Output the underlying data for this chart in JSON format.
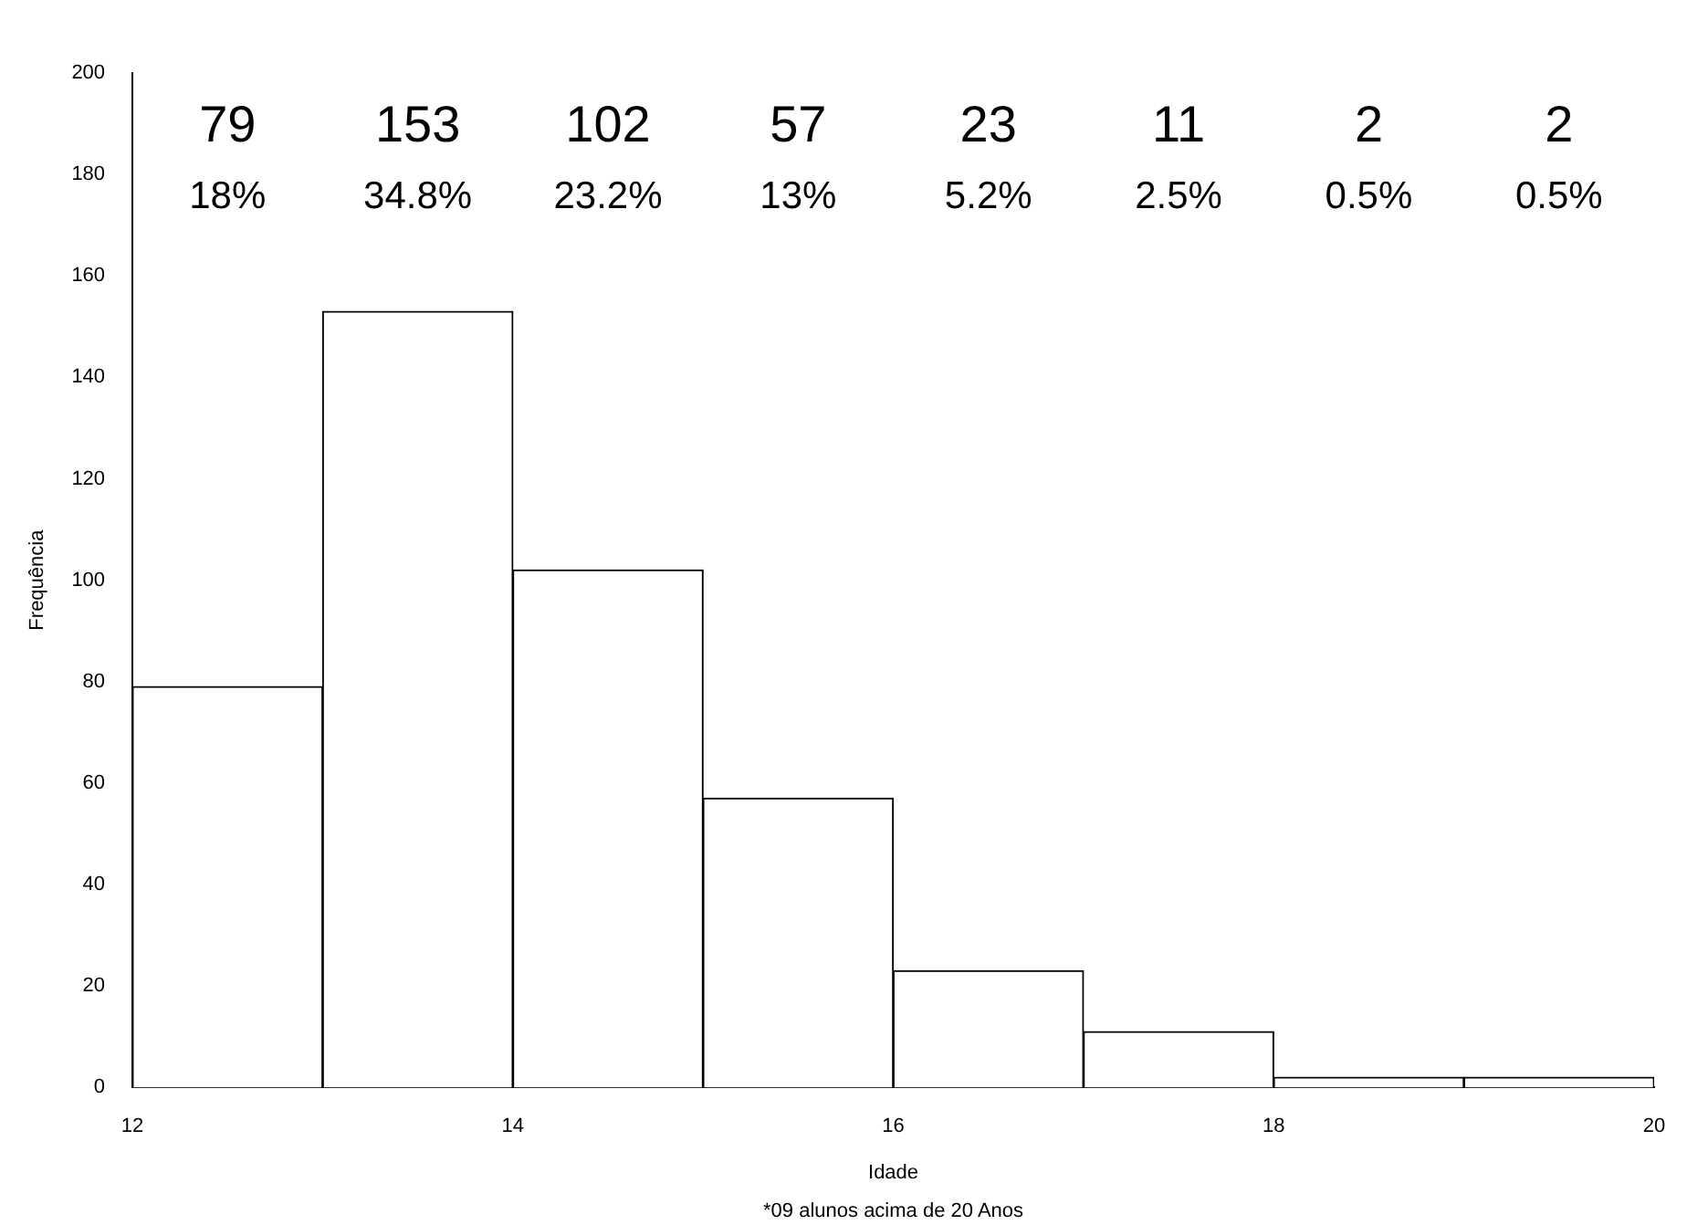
{
  "chart_data": {
    "type": "histogram",
    "xlabel": "Idade",
    "ylabel": "Frequência",
    "bins": [
      12,
      13,
      14,
      15,
      16,
      17,
      18,
      19,
      20
    ],
    "values": [
      79,
      153,
      102,
      57,
      23,
      11,
      2,
      2
    ],
    "color": "#ffffff",
    "xlim": [
      12,
      20
    ],
    "xticks": [
      12,
      14,
      16,
      18,
      20
    ],
    "ylim": [
      0,
      200
    ],
    "yticks": [
      0,
      20,
      40,
      60,
      80,
      100,
      120,
      140,
      160,
      180,
      200
    ],
    "grid": false,
    "legend": false,
    "annotations": [
      "79",
      "153",
      "102",
      "57",
      "23",
      "11",
      "2",
      "2",
      "18%",
      "34.8%",
      "23.2%",
      "13%",
      "5.2%",
      "2.5%",
      "0.5%",
      "0.5%",
      "*09 alunos acima de 20 Anos"
    ]
  }
}
